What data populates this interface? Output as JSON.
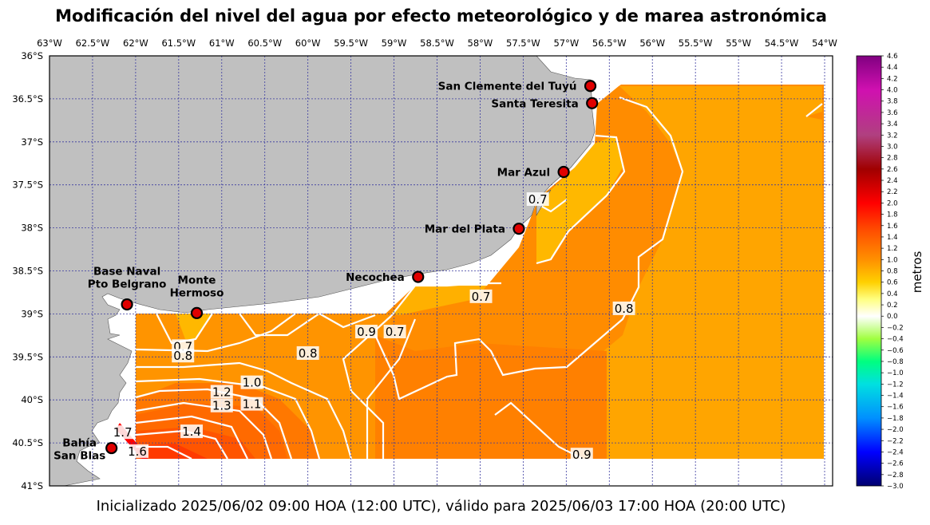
{
  "title": "Modificación del nivel del agua por efecto meteorológico y de marea astronómica",
  "subtitle": "Inicializado 2025/06/02 09:00 HOA (12:00 UTC), válido para 2025/06/03 17:00 HOA (20:00 UTC)",
  "map": {
    "lon_range": [
      -63,
      -54
    ],
    "lat_range": [
      -41,
      -36
    ],
    "lon_ticks": [
      "63°W",
      "62.5°W",
      "62°W",
      "61.5°W",
      "61°W",
      "60.5°W",
      "60°W",
      "59.5°W",
      "59°W",
      "58.5°W",
      "58°W",
      "57.5°W",
      "57°W",
      "56.5°W",
      "56°W",
      "55.5°W",
      "55°W",
      "54.5°W",
      "54°W"
    ],
    "lat_ticks": [
      "36°S",
      "36.5°S",
      "37°S",
      "37.5°S",
      "38°S",
      "38.5°S",
      "39°S",
      "39.5°S",
      "40°S",
      "40.5°S",
      "41°S"
    ],
    "land_color": "#c0c0c0",
    "grid_color": "#3a3aa0",
    "stations": [
      {
        "label": "San Clemente del Tuyú",
        "lon": -56.72,
        "lat": -36.35
      },
      {
        "label": "Santa Teresita",
        "lon": -56.7,
        "lat": -36.55
      },
      {
        "label": "Mar Azul",
        "lon": -57.03,
        "lat": -37.35
      },
      {
        "label": "Mar del Plata",
        "lon": -57.55,
        "lat": -38.01
      },
      {
        "label": "Necochea",
        "lon": -58.72,
        "lat": -38.57
      },
      {
        "label": "Base Naval\nPto Belgrano",
        "lon": -62.1,
        "lat": -38.89
      },
      {
        "label": "Monte\nHermoso",
        "lon": -61.29,
        "lat": -38.99
      },
      {
        "label": "Bahía\nSan Blas",
        "lon": -62.28,
        "lat": -40.56
      }
    ],
    "contour_labels": [
      {
        "text": "0.7",
        "lon": -57.33,
        "lat": -37.67
      },
      {
        "text": "0.8",
        "lon": -56.33,
        "lat": -38.94
      },
      {
        "text": "0.7",
        "lon": -57.99,
        "lat": -38.8
      },
      {
        "text": "0.7",
        "lon": -58.99,
        "lat": -39.21
      },
      {
        "text": "0.9",
        "lon": -59.32,
        "lat": -39.21
      },
      {
        "text": "0.8",
        "lon": -60.0,
        "lat": -39.46
      },
      {
        "text": "0.7",
        "lon": -61.45,
        "lat": -39.38
      },
      {
        "text": "0.8",
        "lon": -61.45,
        "lat": -39.49
      },
      {
        "text": "1.0",
        "lon": -60.65,
        "lat": -39.8
      },
      {
        "text": "1.2",
        "lon": -61.0,
        "lat": -39.91
      },
      {
        "text": "1.3",
        "lon": -61.0,
        "lat": -40.07
      },
      {
        "text": "1.1",
        "lon": -60.65,
        "lat": -40.05
      },
      {
        "text": "1.4",
        "lon": -61.35,
        "lat": -40.37
      },
      {
        "text": "1.7",
        "lon": -62.15,
        "lat": -40.38
      },
      {
        "text": "1.6",
        "lon": -61.98,
        "lat": -40.6
      },
      {
        "text": "0.9",
        "lon": -56.82,
        "lat": -40.64
      }
    ]
  },
  "colorbar": {
    "label": "metros",
    "min": -3.0,
    "max": 4.6,
    "ticks": [
      "4.6",
      "4.4",
      "4.2",
      "4.0",
      "3.8",
      "3.6",
      "3.4",
      "3.2",
      "3.0",
      "2.8",
      "2.6",
      "2.4",
      "2.2",
      "2.0",
      "1.8",
      "1.6",
      "1.4",
      "1.2",
      "1.0",
      "0.8",
      "0.6",
      "0.4",
      "0.2",
      "0.0",
      "−0.2",
      "−0.4",
      "−0.6",
      "−0.8",
      "−1.0",
      "−1.2",
      "−1.4",
      "−1.6",
      "−1.8",
      "−2.0",
      "−2.2",
      "−2.4",
      "−2.6",
      "−2.8",
      "−3.0"
    ],
    "stops": [
      {
        "v": -3.0,
        "color": "#000070"
      },
      {
        "v": -2.4,
        "color": "#0000ff"
      },
      {
        "v": -1.8,
        "color": "#0090ff"
      },
      {
        "v": -1.2,
        "color": "#00e0e0"
      },
      {
        "v": -0.8,
        "color": "#00ff80"
      },
      {
        "v": -0.4,
        "color": "#a0ff40"
      },
      {
        "v": -0.1,
        "color": "#e8ffd0"
      },
      {
        "v": 0.0,
        "color": "#ffffff"
      },
      {
        "v": 0.3,
        "color": "#ffff80"
      },
      {
        "v": 0.6,
        "color": "#ffd000"
      },
      {
        "v": 1.0,
        "color": "#ff9000"
      },
      {
        "v": 1.5,
        "color": "#ff5000"
      },
      {
        "v": 2.0,
        "color": "#ff0000"
      },
      {
        "v": 2.6,
        "color": "#a00000"
      },
      {
        "v": 3.2,
        "color": "#b04080"
      },
      {
        "v": 4.0,
        "color": "#d010b0"
      },
      {
        "v": 4.6,
        "color": "#800080"
      }
    ]
  }
}
